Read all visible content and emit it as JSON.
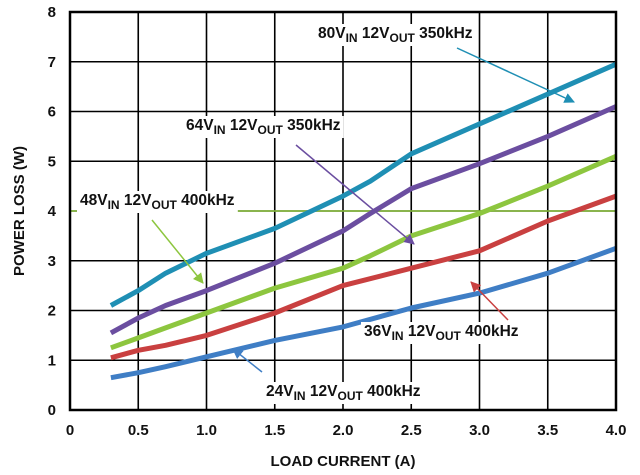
{
  "chart_data": {
    "type": "line",
    "title": "",
    "xlabel": "LOAD CURRENT (A)",
    "ylabel": "POWER LOSS (W)",
    "xlim": [
      0,
      4.0
    ],
    "ylim": [
      0,
      8
    ],
    "grid": true,
    "legend": "none",
    "x_ticks": [
      "0",
      "0.5",
      "1.0",
      "1.5",
      "2.0",
      "2.5",
      "3.0",
      "3.5",
      "4.0"
    ],
    "y_ticks": [
      "0",
      "1",
      "2",
      "3",
      "4",
      "5",
      "6",
      "7",
      "8"
    ],
    "reference_line": {
      "y": 4,
      "color": "#8dc63f"
    },
    "series": [
      {
        "color": "#1f8fb4",
        "label": {
          "vin": "80V",
          "in": "IN",
          "mid": " 12V",
          "out": "OUT",
          "tail": " 350kHz"
        },
        "points": [
          [
            0.3,
            2.1
          ],
          [
            0.5,
            2.4
          ],
          [
            0.7,
            2.75
          ],
          [
            1.0,
            3.15
          ],
          [
            1.5,
            3.65
          ],
          [
            2.0,
            4.3
          ],
          [
            2.2,
            4.6
          ],
          [
            2.5,
            5.15
          ],
          [
            3.0,
            5.75
          ],
          [
            3.5,
            6.35
          ],
          [
            4.0,
            6.95
          ]
        ]
      },
      {
        "color": "#6b4ea0",
        "label": {
          "vin": "64V",
          "in": "IN",
          "mid": " 12V",
          "out": "OUT",
          "tail": " 350kHz"
        },
        "points": [
          [
            0.3,
            1.55
          ],
          [
            0.5,
            1.85
          ],
          [
            0.7,
            2.1
          ],
          [
            1.0,
            2.4
          ],
          [
            1.5,
            2.95
          ],
          [
            2.0,
            3.6
          ],
          [
            2.2,
            3.95
          ],
          [
            2.5,
            4.45
          ],
          [
            3.0,
            4.95
          ],
          [
            3.5,
            5.5
          ],
          [
            4.0,
            6.1
          ]
        ]
      },
      {
        "color": "#8dc63f",
        "label": {
          "vin": "48V",
          "in": "IN",
          "mid": " 12V",
          "out": "OUT",
          "tail": " 400kHz"
        },
        "points": [
          [
            0.3,
            1.25
          ],
          [
            0.5,
            1.45
          ],
          [
            0.7,
            1.65
          ],
          [
            1.0,
            1.95
          ],
          [
            1.5,
            2.45
          ],
          [
            2.0,
            2.85
          ],
          [
            2.2,
            3.1
          ],
          [
            2.5,
            3.5
          ],
          [
            3.0,
            3.95
          ],
          [
            3.5,
            4.5
          ],
          [
            4.0,
            5.1
          ]
        ]
      },
      {
        "color": "#c94040",
        "label": {
          "vin": "36V",
          "in": "IN",
          "mid": " 12V",
          "out": "OUT",
          "tail": " 400kHz"
        },
        "points": [
          [
            0.3,
            1.05
          ],
          [
            0.5,
            1.2
          ],
          [
            0.7,
            1.3
          ],
          [
            1.0,
            1.5
          ],
          [
            1.5,
            1.95
          ],
          [
            2.0,
            2.5
          ],
          [
            2.5,
            2.85
          ],
          [
            3.0,
            3.2
          ],
          [
            3.5,
            3.8
          ],
          [
            4.0,
            4.3
          ]
        ]
      },
      {
        "color": "#3f7ec5",
        "label": {
          "vin": "24V",
          "in": "IN",
          "mid": " 12V",
          "out": "OUT",
          "tail": " 400kHz"
        },
        "points": [
          [
            0.3,
            0.65
          ],
          [
            0.5,
            0.75
          ],
          [
            0.7,
            0.87
          ],
          [
            1.0,
            1.07
          ],
          [
            1.5,
            1.4
          ],
          [
            2.0,
            1.67
          ],
          [
            2.5,
            2.05
          ],
          [
            3.0,
            2.35
          ],
          [
            3.5,
            2.75
          ],
          [
            4.0,
            3.25
          ]
        ]
      }
    ]
  }
}
